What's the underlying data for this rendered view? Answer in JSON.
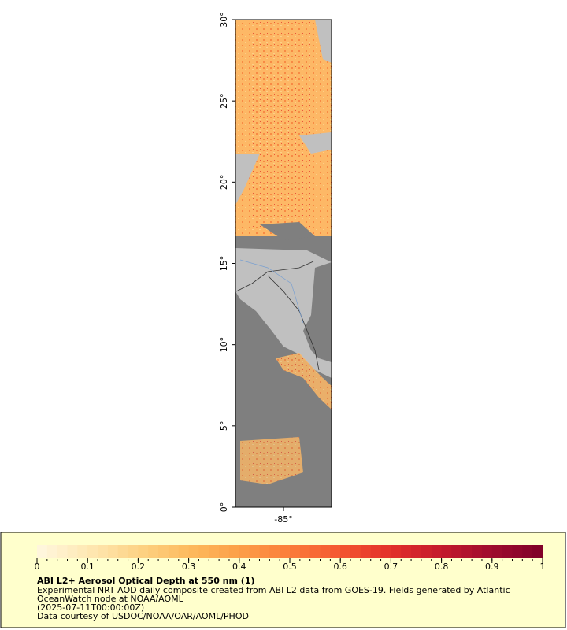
{
  "map": {
    "lat_range": [
      0,
      30
    ],
    "lon_range": [
      -88,
      -82
    ],
    "lat_ticks": [
      {
        "value": 0,
        "label": "0°"
      },
      {
        "value": 5,
        "label": "5°"
      },
      {
        "value": 10,
        "label": "10°"
      },
      {
        "value": 15,
        "label": "15°"
      },
      {
        "value": 20,
        "label": "20°"
      },
      {
        "value": 25,
        "label": "25°"
      },
      {
        "value": 30,
        "label": "30°"
      }
    ],
    "lon_ticks": [
      {
        "value": -85,
        "label": "-85°"
      }
    ]
  },
  "colorbar": {
    "range": [
      0,
      1
    ],
    "ticks": [
      0,
      0.1,
      0.2,
      0.3,
      0.4,
      0.5,
      0.6,
      0.7,
      0.8,
      0.9,
      1
    ],
    "colors": [
      "#fff7e0",
      "#fee8b4",
      "#fdd385",
      "#fdbb5e",
      "#fc9f48",
      "#fb7d3a",
      "#f45631",
      "#e2302a",
      "#c41a2c",
      "#9e0c2e",
      "#7f0028"
    ]
  },
  "legend": {
    "title": "ABI L2+ Aerosol Optical Depth at 550 nm (1)",
    "lines": [
      "Experimental NRT AOD daily composite created from ABI L2 data from GOES-19. Fields generated by Atlantic",
      "OceanWatch node at NOAA/AOML",
      "(2025-07-11T00:00:00Z)",
      "Data courtesy of USDOC/NOAA/OAR/AOML/PHOD"
    ]
  }
}
